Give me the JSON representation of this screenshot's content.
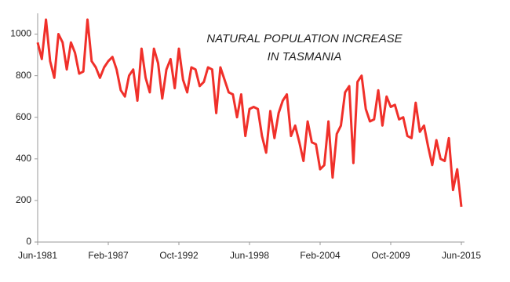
{
  "chart_data": {
    "type": "line",
    "title": [
      "NATURAL POPULATION INCREASE",
      "IN TASMANIA"
    ],
    "categories": [
      "Jun-1981",
      null,
      null,
      null,
      null,
      null,
      null,
      null,
      null,
      null,
      null,
      null,
      null,
      null,
      null,
      null,
      null,
      "Feb-1987",
      null,
      null,
      null,
      null,
      null,
      null,
      null,
      null,
      null,
      null,
      null,
      null,
      null,
      null,
      null,
      null,
      "Oct-1992",
      null,
      null,
      null,
      null,
      null,
      null,
      null,
      null,
      null,
      null,
      null,
      null,
      null,
      null,
      null,
      null,
      "Jun-1998",
      null,
      null,
      null,
      null,
      null,
      null,
      null,
      null,
      null,
      null,
      null,
      null,
      null,
      null,
      null,
      null,
      "Feb-2004",
      null,
      null,
      null,
      null,
      null,
      null,
      null,
      null,
      null,
      null,
      null,
      null,
      null,
      null,
      null,
      null,
      "Oct-2009",
      null,
      null,
      null,
      null,
      null,
      null,
      null,
      null,
      null,
      null,
      null,
      null,
      null,
      null,
      null,
      null,
      "Jun-2015"
    ],
    "series": [
      {
        "color": "#f0302a",
        "values": [
          960,
          880,
          1070,
          870,
          790,
          1000,
          960,
          830,
          960,
          910,
          810,
          820,
          1070,
          870,
          840,
          790,
          840,
          870,
          890,
          830,
          730,
          700,
          800,
          830,
          680,
          930,
          790,
          720,
          930,
          860,
          690,
          830,
          880,
          740,
          930,
          780,
          720,
          840,
          830,
          750,
          770,
          840,
          830,
          620,
          840,
          780,
          720,
          710,
          600,
          710,
          510,
          640,
          650,
          640,
          510,
          430,
          630,
          500,
          620,
          680,
          710,
          510,
          560,
          480,
          390,
          580,
          480,
          470,
          350,
          370,
          580,
          310,
          520,
          560,
          720,
          750,
          380,
          770,
          800,
          640,
          580,
          590,
          730,
          560,
          700,
          650,
          660,
          590,
          600,
          510,
          500,
          670,
          530,
          560,
          460,
          370,
          490,
          400,
          390,
          500,
          250,
          350,
          170
        ]
      }
    ],
    "ylim": [
      0,
      1100
    ],
    "yticks": [
      0,
      200,
      400,
      600,
      800,
      1000
    ],
    "grid": false
  }
}
